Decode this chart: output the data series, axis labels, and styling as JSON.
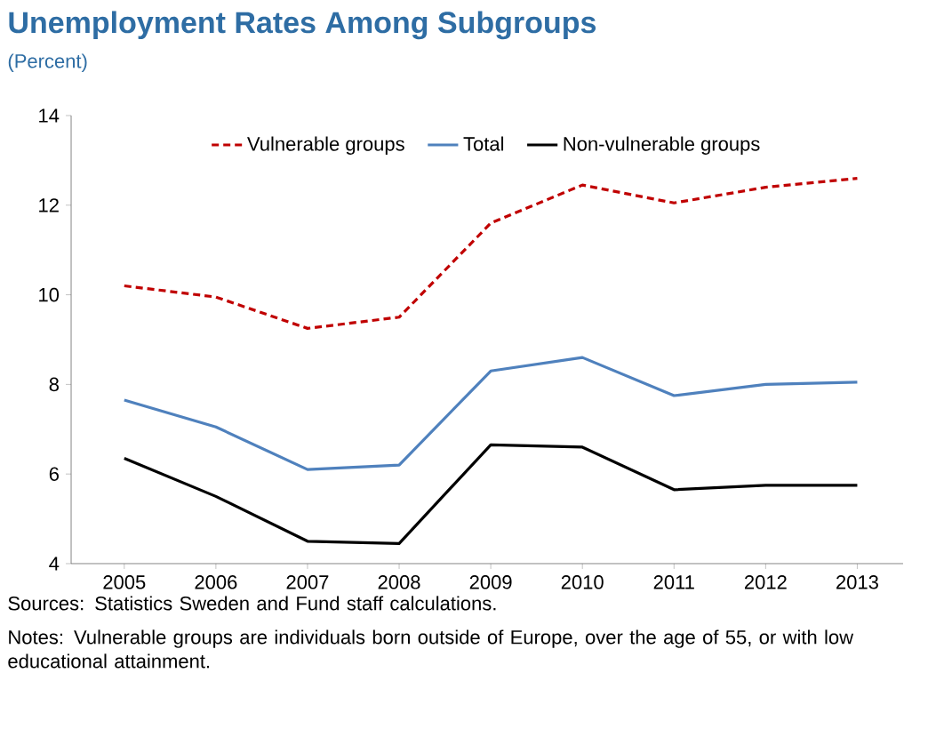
{
  "chart_data": {
    "type": "line",
    "title": "Unemployment Rates Among Subgroups",
    "subtitle": "(Percent)",
    "categories": [
      "2005",
      "2006",
      "2007",
      "2008",
      "2009",
      "2010",
      "2011",
      "2012",
      "2013"
    ],
    "series": [
      {
        "name": "Vulnerable groups",
        "color": "#c00000",
        "line_style": "dashed",
        "values": [
          10.2,
          9.95,
          9.25,
          9.5,
          11.6,
          12.45,
          12.05,
          12.4,
          12.6
        ]
      },
      {
        "name": "Total",
        "color": "#4f81bd",
        "line_style": "solid",
        "values": [
          7.65,
          7.05,
          6.1,
          6.2,
          8.3,
          8.6,
          7.75,
          8.0,
          8.05
        ]
      },
      {
        "name": "Non-vulnerable groups",
        "color": "#000000",
        "line_style": "solid",
        "values": [
          6.35,
          5.5,
          4.5,
          4.45,
          6.65,
          6.6,
          5.65,
          5.75,
          5.75
        ]
      }
    ],
    "ylim": [
      4,
      14
    ],
    "yticks": [
      4,
      6,
      8,
      10,
      12,
      14
    ],
    "legend": "top",
    "grid": false,
    "annotations": [
      "Sources: Statistics Sweden and Fund staff calculations.",
      "Notes: Vulnerable groups are individuals born outside of Europe, over the age of 55, or with low educational attainment."
    ]
  }
}
